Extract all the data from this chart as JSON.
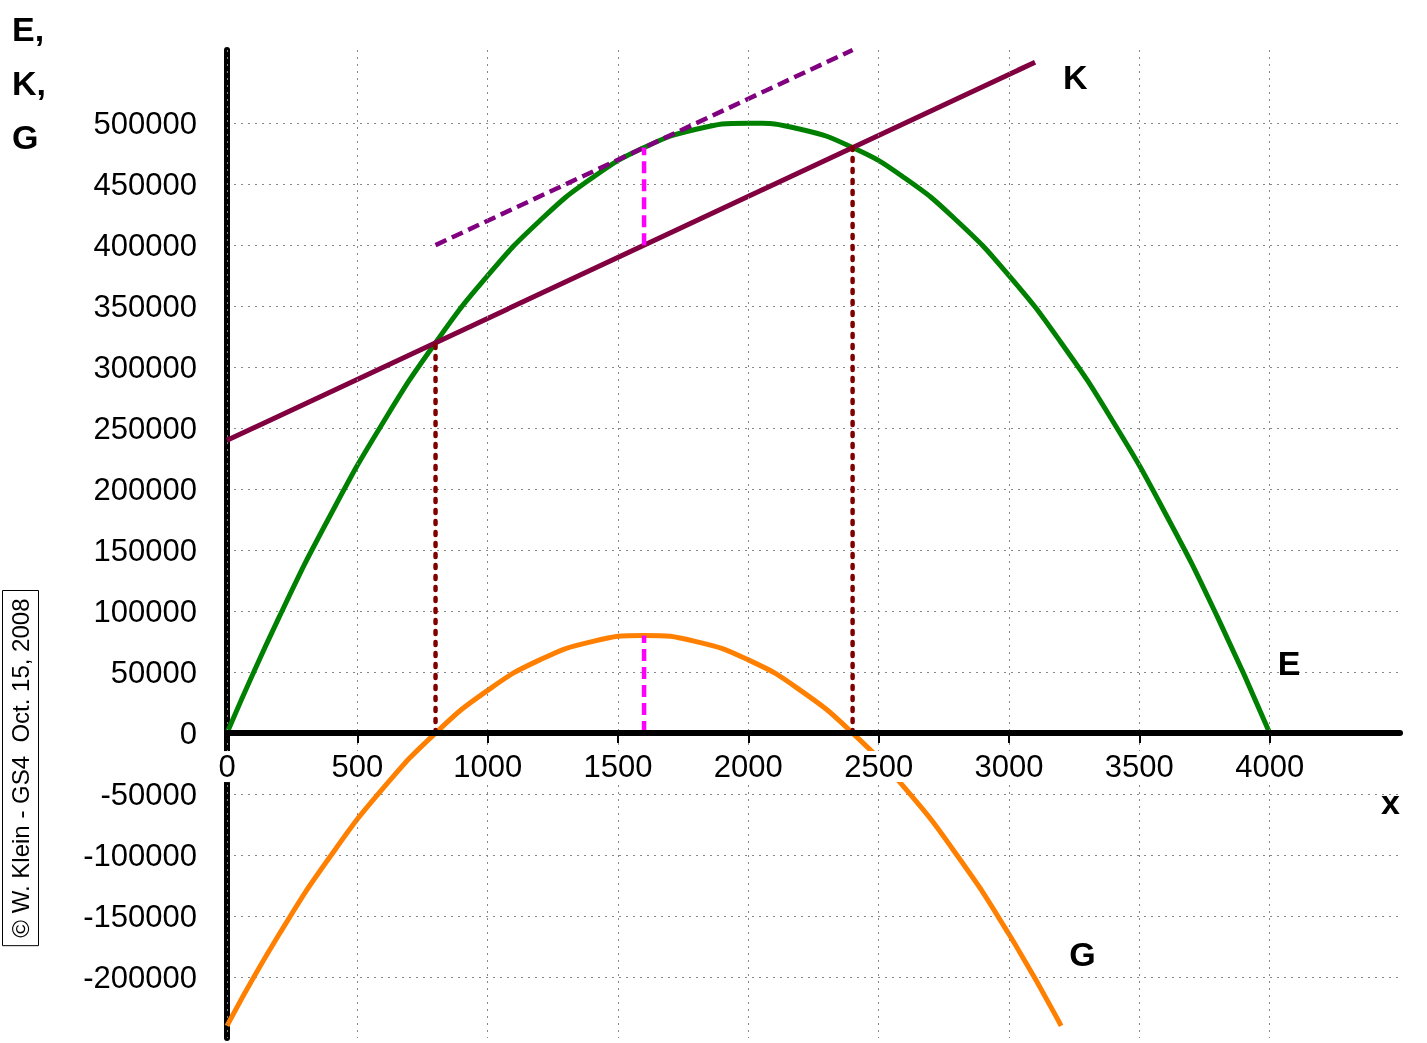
{
  "chart_data": {
    "type": "line",
    "xlabel": "x",
    "ylabel": "E,\nK,\nG",
    "xlim": [
      0,
      4500
    ],
    "xticks": [
      0,
      500,
      1000,
      1500,
      2000,
      2500,
      3000,
      3500,
      4000
    ],
    "ylim": [
      -250000,
      560000
    ],
    "yticks": [
      -200000,
      -150000,
      -100000,
      -50000,
      0,
      50000,
      100000,
      150000,
      200000,
      250000,
      300000,
      350000,
      400000,
      450000,
      500000
    ],
    "grid": true,
    "legend": false,
    "marker": "none",
    "annotations": [
      "© W. Klein - GS4  Oct. 15, 2008"
    ],
    "series": [
      {
        "name": "E",
        "color": "#008000",
        "line_style": "solid",
        "x": [
          0,
          200,
          400,
          600,
          800,
          1000,
          1200,
          1400,
          1600,
          1800,
          2000,
          2200,
          2400,
          2600,
          2800,
          3000,
          3200,
          3400,
          3600,
          3800,
          4000
        ],
        "values": [
          0,
          95000,
          180000,
          255000,
          320000,
          375000,
          420000,
          455000,
          480000,
          495000,
          500000,
          495000,
          480000,
          455000,
          420000,
          375000,
          320000,
          255000,
          180000,
          95000,
          0
        ]
      },
      {
        "name": "K",
        "color": "#800040",
        "line_style": "solid",
        "x": [
          0,
          3100
        ],
        "values": [
          240000,
          550000
        ]
      },
      {
        "name": "G",
        "color": "#ff8000",
        "line_style": "solid",
        "x": [
          0,
          200,
          400,
          600,
          800,
          1000,
          1200,
          1400,
          1600,
          1800,
          2000,
          2200,
          2400,
          2600,
          2800,
          3000,
          3200
        ],
        "values": [
          -240000,
          -165000,
          -100000,
          -45000,
          0,
          35000,
          60000,
          75000,
          80000,
          75000,
          60000,
          35000,
          0,
          -45000,
          -100000,
          -165000,
          -240000
        ]
      },
      {
        "color": "#800080",
        "line_style": "dashed",
        "x": [
          800,
          2400
        ],
        "values": [
          400000,
          560000
        ]
      },
      {
        "color": "#800000",
        "line_style": "dotted",
        "x": [
          800,
          800
        ],
        "values": [
          0,
          320000
        ]
      },
      {
        "color": "#800000",
        "line_style": "dotted",
        "x": [
          2400,
          2400
        ],
        "values": [
          0,
          480000
        ]
      },
      {
        "color": "#ff00ff",
        "line_style": "dashed",
        "x": [
          1600,
          1600
        ],
        "values": [
          400000,
          480000
        ]
      },
      {
        "color": "#ff00ff",
        "line_style": "dashed",
        "x": [
          1600,
          1600
        ],
        "values": [
          0,
          80000
        ]
      }
    ]
  }
}
